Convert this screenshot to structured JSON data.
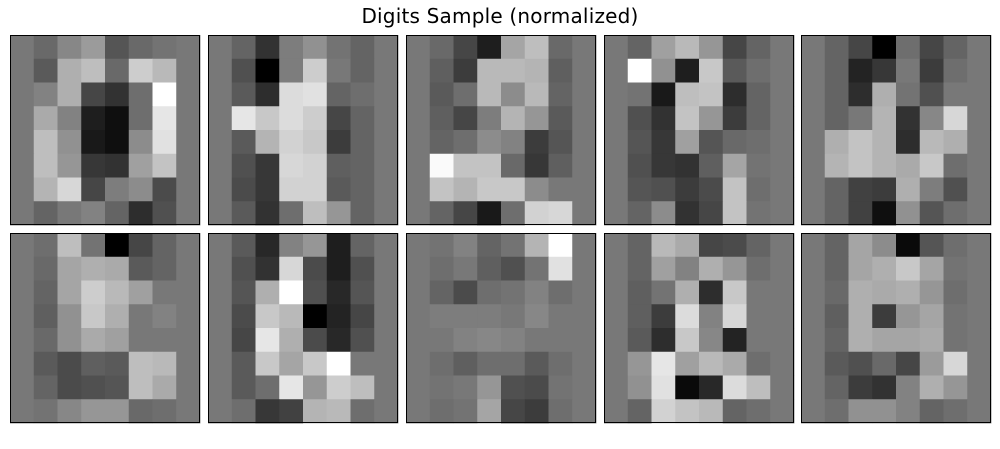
{
  "figure": {
    "title": "Digits Sample (normalized)"
  },
  "chart_data": {
    "type": "heatmap",
    "colormap": "grayscale",
    "layout": {
      "rows": 2,
      "cols": 5
    },
    "grid_size": [
      8,
      8
    ],
    "value_range": [
      0,
      255
    ],
    "note_values": "gray intensity per cell (0 = black, 255 = white)",
    "images": [
      {
        "pixels": [
          [
            120,
            105,
            135,
            155,
            85,
            105,
            115,
            120
          ],
          [
            120,
            90,
            175,
            190,
            105,
            205,
            185,
            120
          ],
          [
            120,
            130,
            175,
            70,
            50,
            110,
            255,
            120
          ],
          [
            120,
            170,
            130,
            30,
            15,
            110,
            230,
            120
          ],
          [
            120,
            190,
            145,
            25,
            15,
            140,
            225,
            120
          ],
          [
            120,
            190,
            150,
            55,
            50,
            160,
            195,
            120
          ],
          [
            120,
            180,
            215,
            70,
            125,
            140,
            75,
            120
          ],
          [
            120,
            100,
            120,
            130,
            100,
            45,
            80,
            120
          ]
        ]
      },
      {
        "pixels": [
          [
            120,
            100,
            50,
            125,
            145,
            115,
            100,
            120
          ],
          [
            120,
            80,
            0,
            125,
            205,
            120,
            100,
            120
          ],
          [
            120,
            90,
            45,
            220,
            225,
            100,
            110,
            120
          ],
          [
            120,
            230,
            200,
            220,
            205,
            70,
            100,
            120
          ],
          [
            120,
            90,
            180,
            210,
            200,
            60,
            100,
            120
          ],
          [
            120,
            80,
            55,
            215,
            210,
            95,
            100,
            120
          ],
          [
            120,
            75,
            55,
            210,
            210,
            90,
            100,
            120
          ],
          [
            120,
            90,
            50,
            110,
            190,
            150,
            100,
            120
          ]
        ]
      },
      {
        "pixels": [
          [
            120,
            105,
            70,
            30,
            165,
            190,
            105,
            120
          ],
          [
            120,
            95,
            60,
            185,
            185,
            180,
            95,
            120
          ],
          [
            120,
            90,
            110,
            185,
            140,
            185,
            100,
            120
          ],
          [
            120,
            95,
            70,
            125,
            180,
            150,
            90,
            120
          ],
          [
            120,
            100,
            110,
            140,
            130,
            60,
            85,
            120
          ],
          [
            120,
            250,
            195,
            195,
            105,
            55,
            95,
            120
          ],
          [
            120,
            195,
            180,
            200,
            200,
            140,
            120,
            120
          ],
          [
            120,
            100,
            70,
            25,
            110,
            210,
            215,
            120
          ]
        ]
      },
      {
        "pixels": [
          [
            120,
            100,
            160,
            185,
            150,
            70,
            100,
            120
          ],
          [
            120,
            255,
            145,
            30,
            200,
            90,
            110,
            120
          ],
          [
            120,
            115,
            25,
            190,
            195,
            45,
            100,
            120
          ],
          [
            120,
            80,
            50,
            195,
            150,
            60,
            100,
            120
          ],
          [
            120,
            85,
            55,
            160,
            85,
            105,
            110,
            120
          ],
          [
            120,
            80,
            55,
            50,
            95,
            165,
            115,
            120
          ],
          [
            120,
            85,
            80,
            60,
            75,
            195,
            110,
            120
          ],
          [
            120,
            100,
            140,
            50,
            70,
            195,
            115,
            120
          ]
        ]
      },
      {
        "pixels": [
          [
            120,
            100,
            70,
            0,
            110,
            70,
            100,
            120
          ],
          [
            120,
            100,
            35,
            55,
            120,
            60,
            110,
            120
          ],
          [
            120,
            100,
            45,
            175,
            115,
            80,
            120,
            120
          ],
          [
            120,
            100,
            120,
            180,
            50,
            135,
            215,
            120
          ],
          [
            120,
            175,
            195,
            180,
            45,
            185,
            175,
            120
          ],
          [
            120,
            180,
            195,
            180,
            170,
            200,
            110,
            120
          ],
          [
            120,
            100,
            65,
            60,
            175,
            125,
            80,
            120
          ],
          [
            120,
            100,
            65,
            15,
            145,
            85,
            110,
            120
          ]
        ]
      },
      {
        "pixels": [
          [
            120,
            110,
            190,
            115,
            0,
            70,
            100,
            120
          ],
          [
            120,
            105,
            165,
            175,
            170,
            90,
            100,
            120
          ],
          [
            120,
            100,
            165,
            205,
            185,
            160,
            120,
            120
          ],
          [
            120,
            95,
            145,
            200,
            175,
            120,
            130,
            120
          ],
          [
            120,
            105,
            145,
            170,
            160,
            120,
            120,
            120
          ],
          [
            120,
            90,
            75,
            95,
            90,
            190,
            185,
            120
          ],
          [
            120,
            100,
            75,
            80,
            85,
            190,
            170,
            120
          ],
          [
            120,
            115,
            135,
            150,
            150,
            105,
            110,
            120
          ]
        ]
      },
      {
        "pixels": [
          [
            120,
            90,
            40,
            130,
            150,
            30,
            100,
            120
          ],
          [
            120,
            80,
            50,
            215,
            75,
            30,
            80,
            120
          ],
          [
            120,
            85,
            175,
            255,
            80,
            40,
            85,
            120
          ],
          [
            120,
            75,
            200,
            185,
            0,
            35,
            70,
            120
          ],
          [
            120,
            70,
            230,
            175,
            75,
            40,
            80,
            120
          ],
          [
            120,
            90,
            200,
            165,
            200,
            255,
            120,
            120
          ],
          [
            120,
            90,
            110,
            230,
            150,
            205,
            190,
            120
          ],
          [
            120,
            110,
            55,
            65,
            180,
            185,
            110,
            120
          ]
        ]
      },
      {
        "pixels": [
          [
            120,
            115,
            130,
            100,
            115,
            180,
            255,
            120
          ],
          [
            120,
            110,
            120,
            95,
            80,
            115,
            225,
            120
          ],
          [
            120,
            100,
            75,
            110,
            115,
            130,
            110,
            120
          ],
          [
            120,
            125,
            125,
            125,
            120,
            135,
            120,
            120
          ],
          [
            120,
            120,
            130,
            135,
            130,
            120,
            120,
            120
          ],
          [
            120,
            110,
            95,
            110,
            110,
            90,
            110,
            120
          ],
          [
            120,
            115,
            120,
            150,
            80,
            75,
            115,
            120
          ],
          [
            120,
            110,
            115,
            165,
            70,
            60,
            110,
            120
          ]
        ]
      },
      {
        "pixels": [
          [
            120,
            100,
            185,
            170,
            70,
            75,
            100,
            120
          ],
          [
            120,
            100,
            160,
            130,
            175,
            150,
            110,
            120
          ],
          [
            120,
            95,
            115,
            175,
            45,
            200,
            120,
            120
          ],
          [
            120,
            95,
            60,
            220,
            130,
            215,
            120,
            120
          ],
          [
            120,
            90,
            45,
            200,
            135,
            35,
            120,
            120
          ],
          [
            120,
            150,
            230,
            160,
            185,
            170,
            110,
            120
          ],
          [
            120,
            145,
            225,
            10,
            40,
            220,
            190,
            120
          ],
          [
            120,
            100,
            210,
            195,
            185,
            100,
            110,
            120
          ]
        ]
      },
      {
        "pixels": [
          [
            120,
            100,
            165,
            140,
            10,
            85,
            110,
            120
          ],
          [
            120,
            100,
            165,
            175,
            200,
            165,
            115,
            120
          ],
          [
            120,
            105,
            175,
            170,
            175,
            150,
            110,
            120
          ],
          [
            120,
            95,
            175,
            60,
            150,
            165,
            115,
            120
          ],
          [
            120,
            100,
            175,
            165,
            165,
            170,
            115,
            120
          ],
          [
            120,
            90,
            80,
            105,
            70,
            155,
            215,
            120
          ],
          [
            120,
            100,
            60,
            50,
            130,
            175,
            150,
            120
          ],
          [
            120,
            110,
            145,
            145,
            130,
            100,
            110,
            120
          ]
        ]
      }
    ]
  }
}
